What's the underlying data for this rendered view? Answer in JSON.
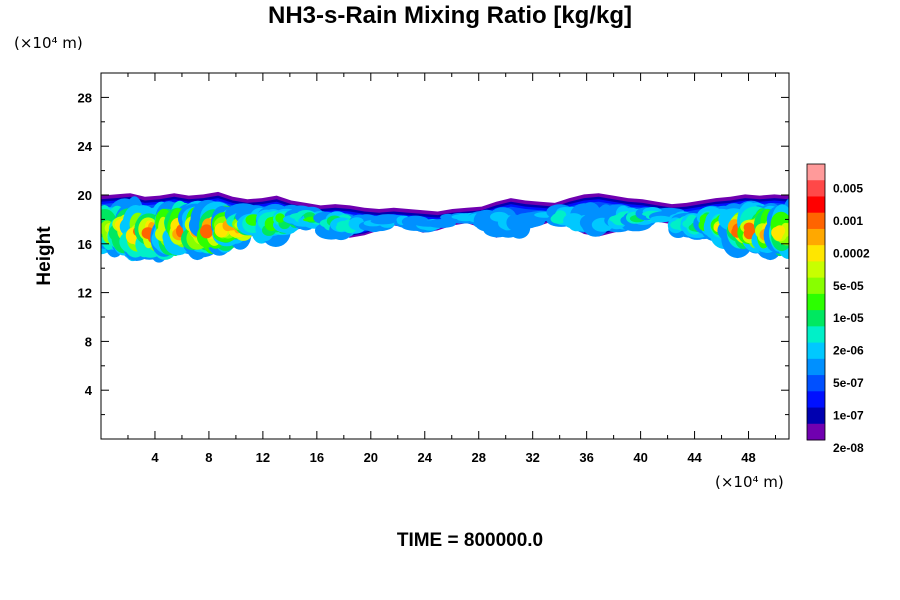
{
  "chart_data": {
    "type": "heatmap",
    "title": "NH3-s-Rain Mixing Ratio [kg/kg]",
    "xlabel": "",
    "ylabel": "Height",
    "x_unit": "(×10⁴ m)",
    "y_unit": "(×10⁴ m)",
    "xlim": [
      0,
      51
    ],
    "ylim": [
      0,
      30
    ],
    "x_ticks": [
      4,
      8,
      12,
      16,
      20,
      24,
      28,
      32,
      36,
      40,
      44,
      48
    ],
    "y_ticks": [
      4,
      8,
      12,
      16,
      20,
      24,
      28
    ],
    "footer": "TIME = 800000.0",
    "colorbar": {
      "labels": [
        "0.005",
        "0.001",
        "0.0002",
        "5e-05",
        "1e-05",
        "2e-06",
        "5e-07",
        "1e-07",
        "2e-08"
      ],
      "colors": [
        "#ff9a9a",
        "#ff4848",
        "#ff0000",
        "#ff6400",
        "#ffa800",
        "#ffe600",
        "#c8ff00",
        "#88ff00",
        "#2cff00",
        "#00e860",
        "#00f0c8",
        "#00c8ff",
        "#0090ff",
        "#0050ff",
        "#0010ff",
        "#0000b0",
        "#7000b0"
      ]
    },
    "cloud_layer": {
      "bottom_height": [
        15.8,
        15.6,
        15.7,
        15.5,
        15.3,
        15.6,
        15.7,
        15.6,
        15.8,
        16.0,
        16.8,
        16.6,
        16.4,
        17.2,
        17.4,
        17.6,
        16.8,
        16.6,
        16.8,
        17.2,
        17.6,
        17.4,
        17.0,
        17.2,
        17.6,
        17.8,
        17.4,
        16.6,
        16.9,
        17.3,
        17.6,
        18.0,
        17.5,
        16.9,
        16.7,
        17.0,
        17.3,
        17.6,
        17.9,
        17.7,
        16.9,
        16.6,
        16.8,
        16.2,
        15.8,
        15.6,
        15.5,
        15.6
      ],
      "top_height": [
        19.8,
        19.9,
        20.0,
        19.7,
        19.8,
        20.0,
        19.8,
        19.9,
        20.1,
        19.7,
        19.5,
        19.6,
        19.8,
        19.4,
        19.2,
        19.0,
        19.1,
        19.0,
        18.8,
        18.7,
        18.8,
        18.7,
        18.6,
        18.5,
        18.7,
        18.8,
        18.9,
        19.3,
        19.6,
        19.4,
        19.3,
        19.2,
        19.6,
        19.9,
        20.0,
        19.8,
        19.6,
        19.5,
        19.3,
        19.1,
        19.2,
        19.4,
        19.6,
        19.7,
        19.9,
        19.8,
        19.9,
        19.8
      ],
      "intensity_class": [
        9,
        10,
        12,
        13,
        13,
        12,
        13,
        14,
        13,
        12,
        10,
        9,
        8,
        8,
        7,
        8,
        7,
        6,
        5,
        5,
        4,
        5,
        5,
        4,
        4,
        5,
        5,
        4,
        5,
        4,
        4,
        5,
        6,
        5,
        4,
        5,
        6,
        7,
        6,
        5,
        6,
        7,
        8,
        11,
        13,
        13,
        12,
        11
      ]
    }
  }
}
